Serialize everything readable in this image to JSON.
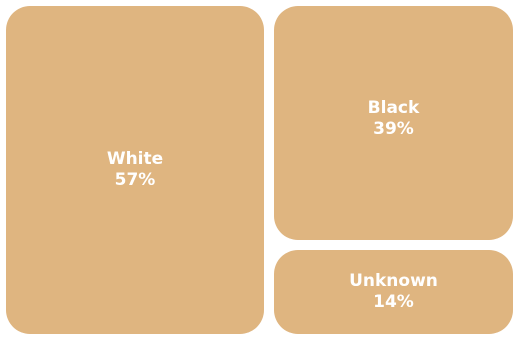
{
  "chart_data": {
    "type": "treemap",
    "fill_color": "#dfb580",
    "text_color": "#ffffff",
    "items": [
      {
        "label": "White",
        "value_text": "57%",
        "value": 57
      },
      {
        "label": "Black",
        "value_text": "39%",
        "value": 39
      },
      {
        "label": "Unknown",
        "value_text": "14%",
        "value": 14
      }
    ]
  }
}
